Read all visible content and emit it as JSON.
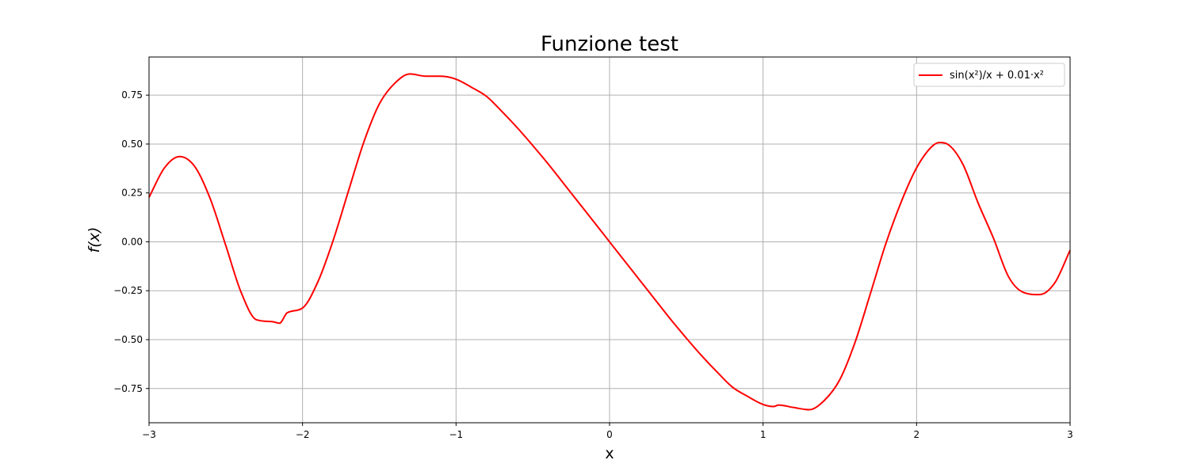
{
  "chart_data": {
    "type": "line",
    "title": "Funzione test",
    "xlabel": "x",
    "ylabel": "f(x)",
    "xlim": [
      -3,
      3
    ],
    "ylim": [
      -0.925,
      0.945
    ],
    "xticks": [
      -3,
      -2,
      -1,
      0,
      1,
      2,
      3
    ],
    "xtick_labels": [
      "−3",
      "−2",
      "−1",
      "0",
      "1",
      "2",
      "3"
    ],
    "yticks": [
      -0.75,
      -0.5,
      -0.25,
      0.0,
      0.25,
      0.5,
      0.75
    ],
    "ytick_labels": [
      "−0.75",
      "−0.50",
      "−0.25",
      "0.00",
      "0.25",
      "0.50",
      "0.75"
    ],
    "grid": true,
    "legend_position": "top-right",
    "series": [
      {
        "name": "sin(x²)/x + 0.01·x²",
        "color": "#ff0000",
        "x": [
          -3.0,
          -2.9,
          -2.8,
          -2.7,
          -2.6,
          -2.5,
          -2.4,
          -2.3,
          -2.2,
          -2.15,
          -2.1,
          -2.0,
          -1.9,
          -1.8,
          -1.7,
          -1.6,
          -1.5,
          -1.4,
          -1.3,
          -1.2,
          -1.1,
          -1.0,
          -0.9,
          -0.8,
          -0.7,
          -0.6,
          -0.5,
          -0.4,
          -0.3,
          -0.2,
          -0.1,
          0.0,
          0.1,
          0.2,
          0.3,
          0.4,
          0.5,
          0.6,
          0.7,
          0.8,
          0.9,
          1.0,
          1.07,
          1.1,
          1.2,
          1.3,
          1.4,
          1.5,
          1.6,
          1.7,
          1.8,
          1.9,
          2.0,
          2.1,
          2.15,
          2.2,
          2.3,
          2.4,
          2.5,
          2.6,
          2.7,
          2.8,
          2.9,
          3.0
        ],
        "y": [
          0.2274,
          0.3775,
          0.4358,
          0.3825,
          0.2178,
          -0.0188,
          -0.2583,
          -0.3986,
          -0.4077,
          -0.4158,
          -0.363,
          -0.3384,
          -0.2044,
          0.0084,
          0.2622,
          0.5118,
          0.7045,
          0.8101,
          0.8583,
          0.8471,
          0.8467,
          0.8315,
          0.7904,
          0.7425,
          0.6653,
          0.5822,
          0.4923,
          0.3985,
          0.2989,
          0.1994,
          0.1,
          0.0,
          -0.0999,
          -0.1994,
          -0.2989,
          -0.3985,
          -0.4923,
          -0.5822,
          -0.6653,
          -0.7425,
          -0.7904,
          -0.8315,
          -0.842,
          -0.8344,
          -0.8471,
          -0.8583,
          -0.8101,
          -0.7045,
          -0.5118,
          -0.2622,
          -0.0084,
          0.2044,
          0.3784,
          0.4877,
          0.5079,
          0.5,
          0.399,
          0.2,
          0.02,
          -0.18,
          -0.26,
          -0.27,
          -0.21,
          -0.043
        ]
      }
    ]
  }
}
